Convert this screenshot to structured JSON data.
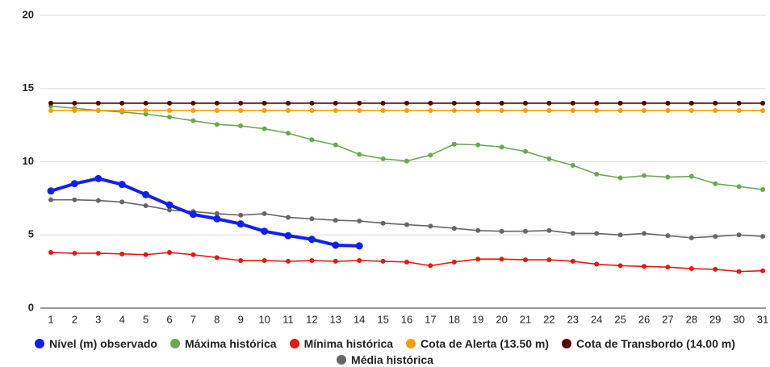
{
  "chart_data": {
    "type": "line",
    "categories": [
      "1",
      "2",
      "3",
      "4",
      "5",
      "6",
      "7",
      "8",
      "9",
      "10",
      "11",
      "12",
      "13",
      "14",
      "15",
      "16",
      "17",
      "18",
      "19",
      "20",
      "21",
      "22",
      "23",
      "24",
      "25",
      "26",
      "27",
      "28",
      "29",
      "30",
      "31"
    ],
    "ylim": [
      0,
      20
    ],
    "yticks": [
      0,
      5,
      10,
      15,
      20
    ],
    "grid": true,
    "legend": "bottom",
    "series": [
      {
        "name": "Nível (m) observado",
        "color": "#1020ee",
        "values": [
          8.0,
          8.5,
          8.85,
          8.45,
          7.75,
          7.05,
          6.4,
          6.1,
          5.75,
          5.25,
          4.95,
          4.7,
          4.3,
          4.25,
          null,
          null,
          null,
          null,
          null,
          null,
          null,
          null,
          null,
          null,
          null,
          null,
          null,
          null,
          null,
          null,
          null
        ]
      },
      {
        "name": "Máxima histórica",
        "color": "#6aa84f",
        "values": [
          13.8,
          13.65,
          13.5,
          13.4,
          13.25,
          13.05,
          12.8,
          12.55,
          12.45,
          12.25,
          11.95,
          11.5,
          11.15,
          10.5,
          10.2,
          10.05,
          10.45,
          11.2,
          11.15,
          11.0,
          10.7,
          10.2,
          9.75,
          9.15,
          8.9,
          9.05,
          8.95,
          9.0,
          8.5,
          8.3,
          8.1
        ]
      },
      {
        "name": "Mínima histórica",
        "color": "#e8170f",
        "values": [
          3.8,
          3.75,
          3.75,
          3.7,
          3.65,
          3.8,
          3.65,
          3.45,
          3.25,
          3.25,
          3.2,
          3.25,
          3.2,
          3.25,
          3.2,
          3.15,
          2.9,
          3.15,
          3.35,
          3.35,
          3.3,
          3.3,
          3.2,
          3.0,
          2.9,
          2.85,
          2.8,
          2.7,
          2.65,
          2.5,
          2.55
        ]
      },
      {
        "name": "Cota de Alerta (13.50 m)",
        "color": "#f5a000",
        "values": [
          13.5,
          13.5,
          13.5,
          13.5,
          13.5,
          13.5,
          13.5,
          13.5,
          13.5,
          13.5,
          13.5,
          13.5,
          13.5,
          13.5,
          13.5,
          13.5,
          13.5,
          13.5,
          13.5,
          13.5,
          13.5,
          13.5,
          13.5,
          13.5,
          13.5,
          13.5,
          13.5,
          13.5,
          13.5,
          13.5,
          13.5
        ]
      },
      {
        "name": "Cota de Transbordo (14.00 m)",
        "color": "#5c0000",
        "values": [
          14.0,
          14.0,
          14.0,
          14.0,
          14.0,
          14.0,
          14.0,
          14.0,
          14.0,
          14.0,
          14.0,
          14.0,
          14.0,
          14.0,
          14.0,
          14.0,
          14.0,
          14.0,
          14.0,
          14.0,
          14.0,
          14.0,
          14.0,
          14.0,
          14.0,
          14.0,
          14.0,
          14.0,
          14.0,
          14.0,
          14.0
        ]
      },
      {
        "name": "Média histórica",
        "color": "#666666",
        "values": [
          7.4,
          7.4,
          7.35,
          7.25,
          7.0,
          6.7,
          6.6,
          6.45,
          6.35,
          6.45,
          6.2,
          6.1,
          6.0,
          5.95,
          5.8,
          5.7,
          5.6,
          5.45,
          5.3,
          5.25,
          5.25,
          5.3,
          5.1,
          5.1,
          5.0,
          5.1,
          4.95,
          4.8,
          4.9,
          5.0,
          4.9
        ]
      }
    ]
  }
}
